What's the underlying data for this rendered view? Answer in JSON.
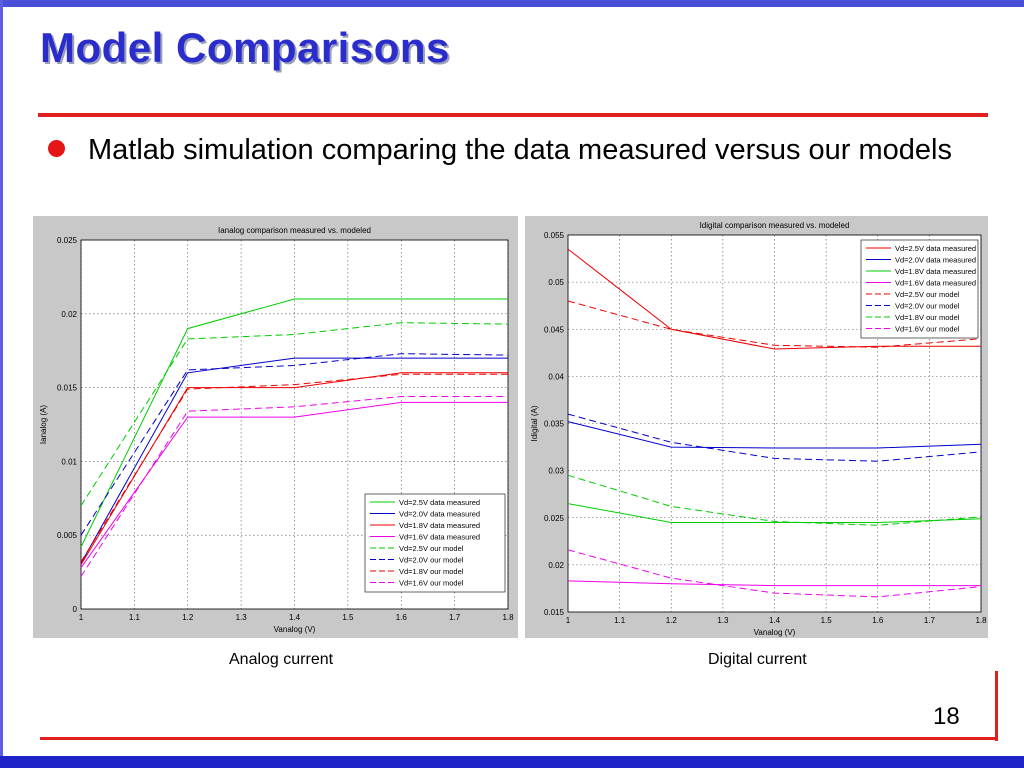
{
  "slide": {
    "title": "Model Comparisons",
    "bullet": "Matlab simulation comparing the data measured versus our models",
    "caption_analog": "Analog current",
    "caption_digital": "Digital current",
    "page_number": "18"
  },
  "colors": {
    "title": "#2a2ccc",
    "accent_red": "#e02020",
    "band_blue": "#1f24c9",
    "series": {
      "2.5V": "#00cc00",
      "2.0V": "#0000cc",
      "1.8V": "#ee0000",
      "1.6V": "#ee00ee"
    }
  },
  "chart_data": [
    {
      "type": "line",
      "title": "Ianalog comparison measured vs. modeled",
      "xlabel": "Vanalog (V)",
      "ylabel": "Ianalog (A)",
      "xlim": [
        1,
        1.8
      ],
      "ylim": [
        0,
        0.025
      ],
      "xticks": [
        "1",
        "1.1",
        "1.2",
        "1.3",
        "1.4",
        "1.5",
        "1.6",
        "1.7",
        "1.8"
      ],
      "yticks": [
        "0",
        "0.005",
        "0.01",
        "0.015",
        "0.02",
        "0.025"
      ],
      "grid": true,
      "legend_position": "bottom-right",
      "x": [
        1.0,
        1.2,
        1.4,
        1.6,
        1.8
      ],
      "series": [
        {
          "name": "Vd=2.5V data measured",
          "color": "#00cc00",
          "dash": false,
          "values": [
            0.0042,
            0.019,
            0.021,
            0.021,
            0.021
          ]
        },
        {
          "name": "Vd=2.0V data measured",
          "color": "#0000cc",
          "dash": false,
          "values": [
            0.0031,
            0.016,
            0.017,
            0.017,
            0.017
          ]
        },
        {
          "name": "Vd=1.8V data measured",
          "color": "#ee0000",
          "dash": false,
          "values": [
            0.003,
            0.015,
            0.015,
            0.016,
            0.016
          ]
        },
        {
          "name": "Vd=1.6V data measured",
          "color": "#ee00ee",
          "dash": false,
          "values": [
            0.0028,
            0.013,
            0.013,
            0.014,
            0.014
          ]
        },
        {
          "name": "Vd=2.5V our model",
          "color": "#00cc00",
          "dash": true,
          "values": [
            0.007,
            0.0183,
            0.0186,
            0.0194,
            0.0193
          ]
        },
        {
          "name": "Vd=2.0V our model",
          "color": "#0000cc",
          "dash": true,
          "values": [
            0.005,
            0.0162,
            0.0165,
            0.0173,
            0.0172
          ]
        },
        {
          "name": "Vd=1.8V our model",
          "color": "#ee0000",
          "dash": true,
          "values": [
            0.0032,
            0.0149,
            0.0152,
            0.0159,
            0.0159
          ]
        },
        {
          "name": "Vd=1.6V our model",
          "color": "#ee00ee",
          "dash": true,
          "values": [
            0.0022,
            0.0134,
            0.0137,
            0.0144,
            0.0144
          ]
        }
      ]
    },
    {
      "type": "line",
      "title": "Idigital comparison measured vs. modeled",
      "xlabel": "Vanalog (V)",
      "ylabel": "Idigital (A)",
      "xlim": [
        1,
        1.8
      ],
      "ylim": [
        0.015,
        0.055
      ],
      "xticks": [
        "1",
        "1.1",
        "1.2",
        "1.3",
        "1.4",
        "1.5",
        "1.6",
        "1.7",
        "1.8"
      ],
      "yticks": [
        "0.015",
        "0.02",
        "0.025",
        "0.03",
        "0.035",
        "0.04",
        "0.045",
        "0.05",
        "0.055"
      ],
      "grid": true,
      "legend_position": "top-right",
      "x": [
        1.0,
        1.2,
        1.4,
        1.6,
        1.8
      ],
      "series": [
        {
          "name": "Vd=2.5V data measured",
          "color": "#ee0000",
          "dash": false,
          "values": [
            0.0535,
            0.045,
            0.0429,
            0.0432,
            0.0432
          ]
        },
        {
          "name": "Vd=2.0V data measured",
          "color": "#0000cc",
          "dash": false,
          "values": [
            0.0352,
            0.0325,
            0.0324,
            0.0324,
            0.0328
          ]
        },
        {
          "name": "Vd=1.8V data measured",
          "color": "#00cc00",
          "dash": false,
          "values": [
            0.0265,
            0.0245,
            0.0245,
            0.0245,
            0.0249
          ]
        },
        {
          "name": "Vd=1.6V data measured",
          "color": "#ee00ee",
          "dash": false,
          "values": [
            0.0183,
            0.018,
            0.0178,
            0.0178,
            0.0178
          ]
        },
        {
          "name": "Vd=2.5V our model",
          "color": "#ee0000",
          "dash": true,
          "values": [
            0.048,
            0.045,
            0.0433,
            0.0431,
            0.044
          ]
        },
        {
          "name": "Vd=2.0V our model",
          "color": "#0000cc",
          "dash": true,
          "values": [
            0.036,
            0.033,
            0.0313,
            0.031,
            0.032
          ]
        },
        {
          "name": "Vd=1.8V our model",
          "color": "#00cc00",
          "dash": true,
          "values": [
            0.0295,
            0.0262,
            0.0246,
            0.0242,
            0.0251
          ]
        },
        {
          "name": "Vd=1.6V our model",
          "color": "#ee00ee",
          "dash": true,
          "values": [
            0.0216,
            0.0186,
            0.017,
            0.0166,
            0.0177
          ]
        }
      ]
    }
  ]
}
